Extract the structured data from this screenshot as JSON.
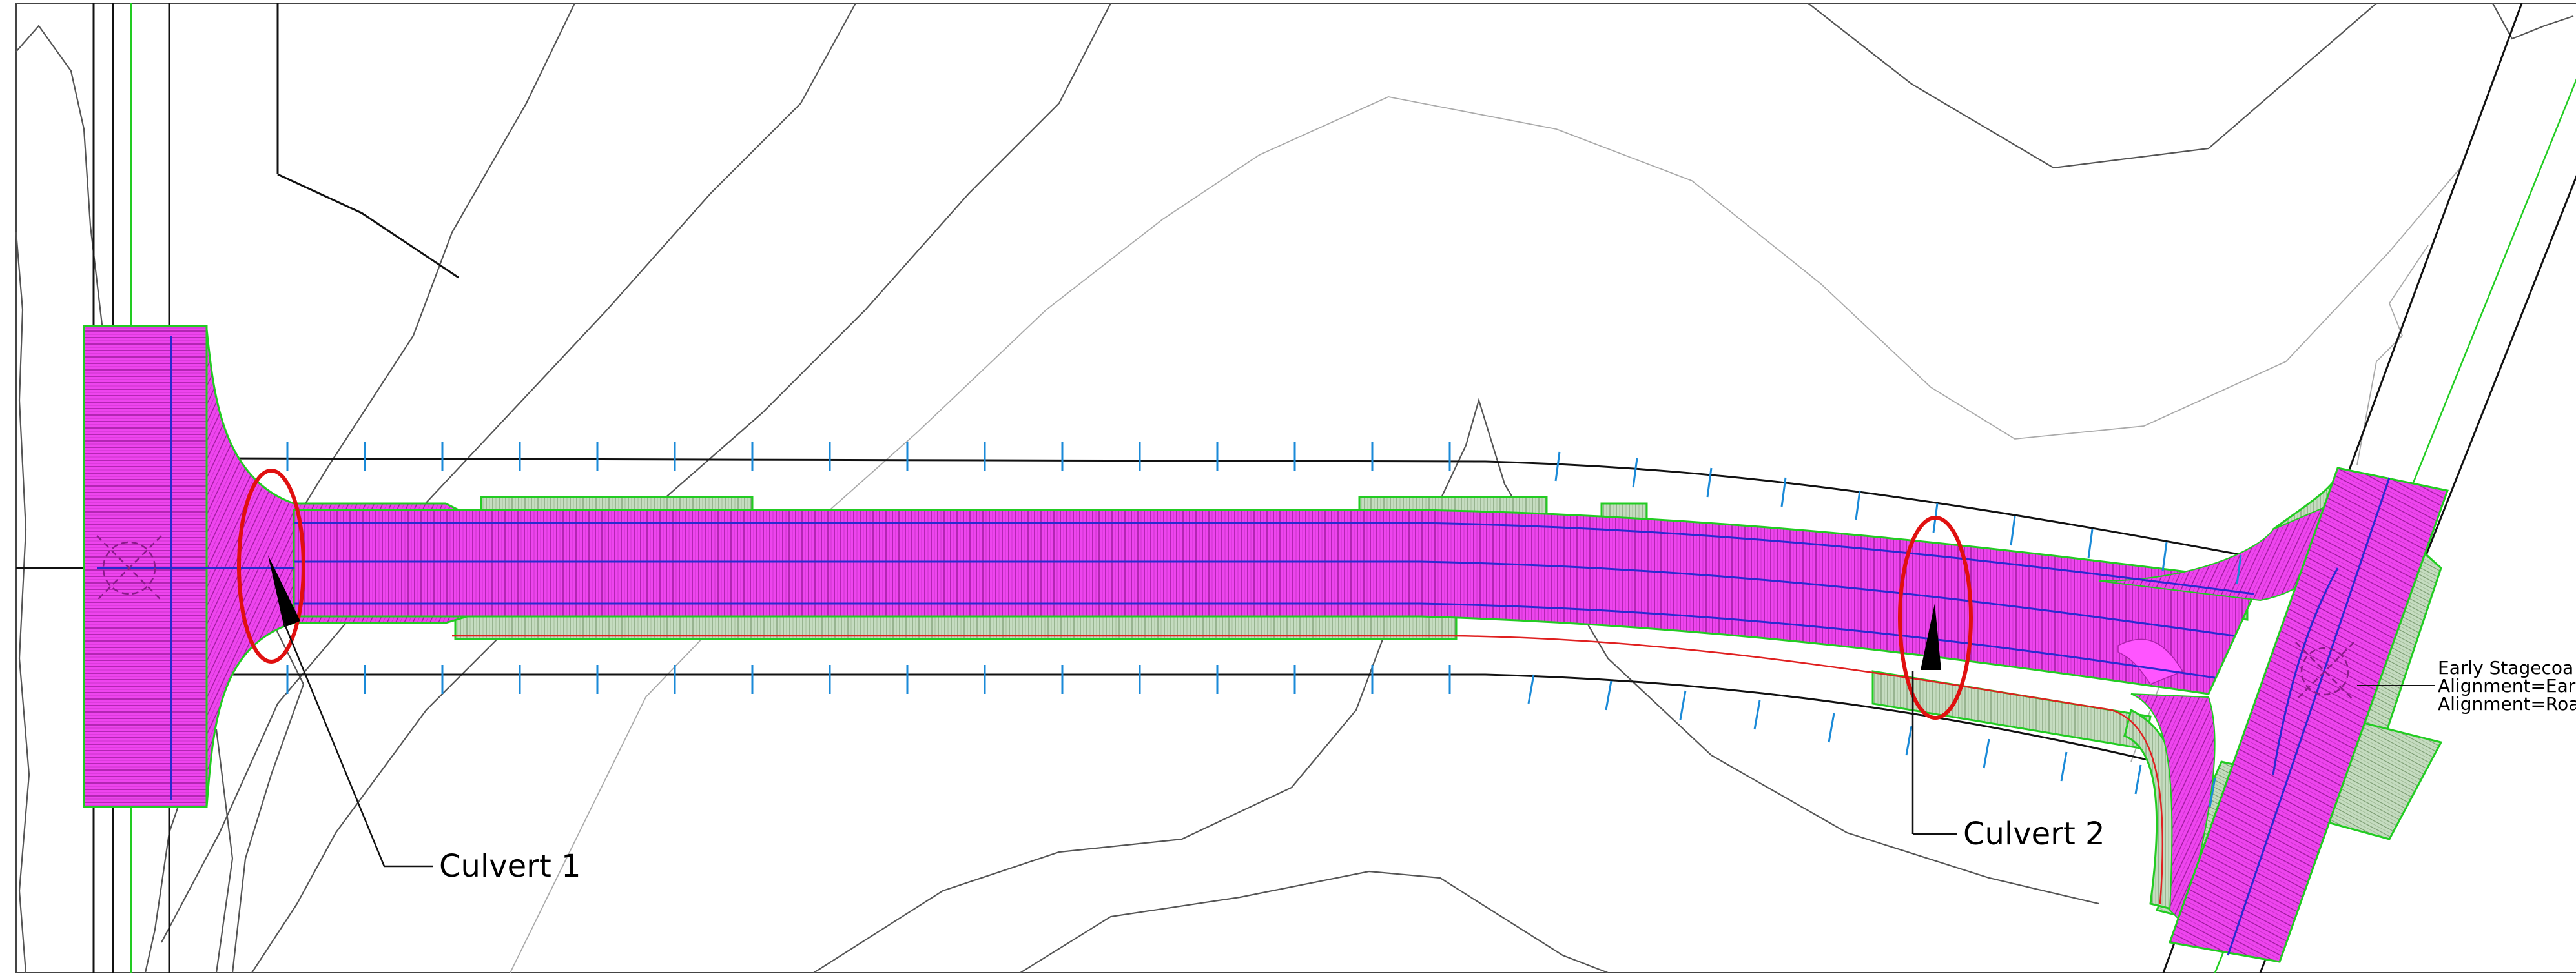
{
  "callouts": {
    "culvert1": "Culvert 1",
    "culvert2": "Culvert 2"
  },
  "note": {
    "line1": "Early Stagecoa",
    "line2": "Alignment=Earl",
    "line3": "Alignment=Roa"
  },
  "colors": {
    "paving": "#ee44ee",
    "hatch": "#9a1a9a",
    "shoulder": "#b8d0b0",
    "outline_green": "#22cc22",
    "centerline_blue": "#2a2ad0",
    "station_tick": "#1a8ad8",
    "culvert_marker": "#e01010",
    "edge_red": "#e02020",
    "contour": "#555555"
  }
}
